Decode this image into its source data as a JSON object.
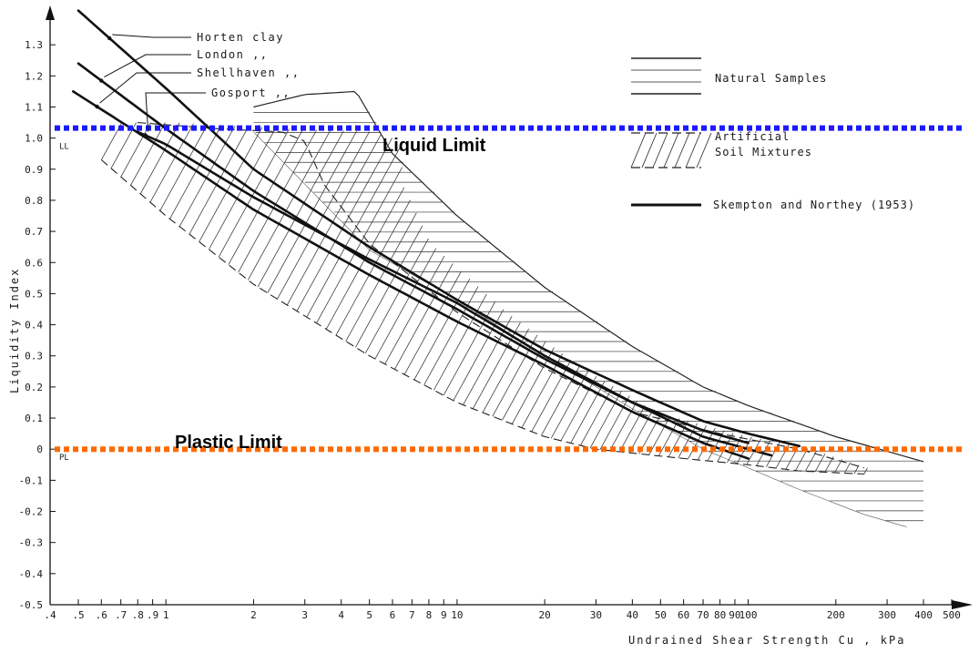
{
  "chart_data": {
    "type": "line",
    "xlabel": "Undrained Shear Strength  Cu ,  kPa",
    "ylabel": "Liquidity Index",
    "xscale": "log",
    "xlim": [
      0.4,
      500
    ],
    "ylim": [
      -0.5,
      1.4
    ],
    "x_ticks": [
      0.4,
      0.5,
      0.6,
      0.7,
      0.8,
      0.9,
      1,
      2,
      3,
      4,
      5,
      6,
      7,
      8,
      9,
      10,
      20,
      30,
      40,
      50,
      60,
      70,
      80,
      90,
      100,
      200,
      300,
      400,
      500
    ],
    "x_tick_labels": [
      ".4",
      ".5",
      ".6",
      ".7",
      ".8",
      ".9",
      "1",
      "2",
      "3",
      "4",
      "5",
      "6",
      "7",
      "8",
      "9",
      "10",
      "20",
      "30",
      "40",
      "50",
      "60",
      "70",
      "80",
      "90",
      "100",
      "200",
      "300",
      "400",
      "500"
    ],
    "y_ticks": [
      -0.5,
      -0.4,
      -0.3,
      -0.2,
      -0.1,
      0,
      0.1,
      0.2,
      0.3,
      0.4,
      0.5,
      0.6,
      0.7,
      0.8,
      0.9,
      1.0,
      1.1,
      1.2,
      1.3
    ],
    "y_tick_labels": [
      "-0.5",
      "-0.4",
      "-0.3",
      "-0.2",
      "-0.1",
      "0",
      "0.1",
      "0.2",
      "0.3",
      "0.4",
      "0.5",
      "0.6",
      "0.7",
      "0.8",
      "0.9",
      "1.0",
      "1.1",
      "1.2",
      "1.3"
    ],
    "y_axis_marks": [
      {
        "y": 1.0,
        "label": "LL"
      },
      {
        "y": 0.0,
        "label": "PL"
      }
    ],
    "series": [
      {
        "name": "Horten  clay",
        "style": "thick",
        "x": [
          0.5,
          1,
          2,
          5,
          10,
          20,
          40,
          70,
          100,
          150
        ],
        "y": [
          1.41,
          1.16,
          0.9,
          0.65,
          0.48,
          0.32,
          0.19,
          0.09,
          0.05,
          0.01
        ]
      },
      {
        "name": "London",
        "style": "thick",
        "x": [
          0.5,
          1,
          2,
          5,
          10,
          20,
          40,
          70,
          100
        ],
        "y": [
          1.24,
          1.03,
          0.83,
          0.6,
          0.45,
          0.29,
          0.15,
          0.06,
          0.02
        ]
      },
      {
        "name": "Shellhaven",
        "style": "thick",
        "x": [
          0.48,
          1,
          2,
          5,
          10,
          20,
          40,
          70,
          100
        ],
        "y": [
          1.15,
          0.96,
          0.77,
          0.56,
          0.41,
          0.27,
          0.12,
          0.02,
          -0.03
        ]
      },
      {
        "name": "Gosport",
        "style": "thick",
        "x": [
          0.8,
          1,
          2,
          5,
          10,
          20,
          40,
          70,
          120
        ],
        "y": [
          1.02,
          0.98,
          0.81,
          0.61,
          0.47,
          0.3,
          0.15,
          0.04,
          -0.02
        ]
      }
    ],
    "natural_samples_region": {
      "upper": {
        "x": [
          2,
          3,
          4.5,
          6,
          10,
          20,
          40,
          70,
          100,
          200,
          400
        ],
        "y": [
          1.1,
          1.14,
          1.15,
          0.95,
          0.75,
          0.52,
          0.33,
          0.2,
          0.14,
          0.04,
          -0.04
        ]
      },
      "lower": {
        "x": [
          2,
          5,
          10,
          20,
          40,
          70,
          100,
          150,
          250,
          350
        ],
        "y": [
          1.02,
          0.64,
          0.48,
          0.3,
          0.13,
          0.0,
          -0.06,
          -0.13,
          -0.21,
          -0.25
        ]
      }
    },
    "artificial_mixtures_region": {
      "upper": {
        "x": [
          0.8,
          1.5,
          2.5,
          3,
          3.5,
          5,
          10,
          20,
          40,
          80,
          150,
          250
        ],
        "y": [
          1.05,
          1.03,
          1.02,
          0.99,
          0.85,
          0.66,
          0.44,
          0.26,
          0.12,
          0.05,
          0.0,
          -0.06
        ]
      },
      "lower": {
        "x": [
          0.6,
          1,
          2,
          5,
          10,
          20,
          30,
          60,
          100,
          150,
          250
        ],
        "y": [
          0.93,
          0.75,
          0.53,
          0.3,
          0.15,
          0.04,
          0.0,
          -0.03,
          -0.05,
          -0.07,
          -0.08
        ]
      }
    },
    "reference_lines": [
      {
        "name": "Liquid Limit",
        "y": 1.0,
        "color": "#1a1aff"
      },
      {
        "name": "Plastic Limit",
        "y": 0.0,
        "color": "#ff6a00"
      }
    ],
    "legend": {
      "position": "top-right",
      "entries": [
        {
          "label": "Natural  Samples",
          "symbol": "horizontal-hatch"
        },
        {
          "label": "Artificial",
          "label2": "Soil  Mixtures",
          "symbol": "diagonal-hatch-dashed"
        },
        {
          "label": "Skempton  and  Northey  (1953)",
          "symbol": "thick-line"
        }
      ]
    },
    "curve_labels": [
      {
        "text": "Horten  clay",
        "series": "Horten  clay"
      },
      {
        "text": "London   ,,",
        "series": "London"
      },
      {
        "text": "Shellhaven ,,",
        "series": "Shellhaven"
      },
      {
        "text": "Gosport  ,,",
        "series": "Gosport"
      }
    ]
  }
}
